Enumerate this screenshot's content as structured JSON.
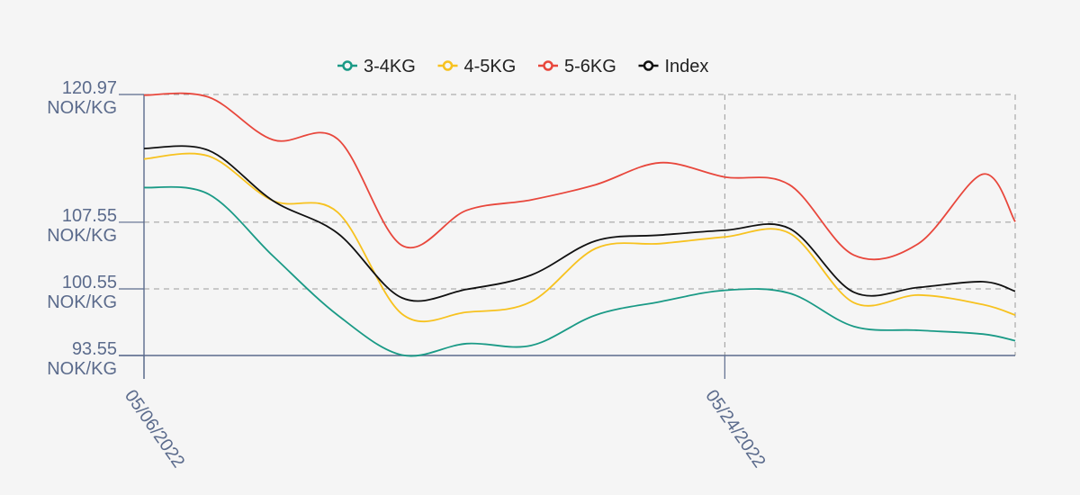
{
  "chart_data": {
    "type": "line",
    "title": "",
    "xlabel": "",
    "ylabel": "",
    "unit": "NOK/KG",
    "y_ticks": [
      93.55,
      100.55,
      107.55,
      120.97
    ],
    "y_tick_labels": [
      "93.55",
      "100.55",
      "107.55",
      "120.97"
    ],
    "ylim": [
      93.55,
      120.97
    ],
    "x_ticks": [
      "05/06/2022",
      "05/24/2022"
    ],
    "x_range": [
      "05/06/2022",
      "06/02/2022"
    ],
    "grid": true,
    "legend_position": "top-center",
    "x": [
      "05/06/2022",
      "05/08/2022",
      "05/10/2022",
      "05/12/2022",
      "05/14/2022",
      "05/16/2022",
      "05/18/2022",
      "05/20/2022",
      "05/22/2022",
      "05/24/2022",
      "05/26/2022",
      "05/28/2022",
      "05/30/2022",
      "06/01/2022",
      "06/02/2022"
    ],
    "series": [
      {
        "name": "3-4KG",
        "color": "#1a9a86",
        "values": [
          111.2,
          110.5,
          104.0,
          97.8,
          93.6,
          94.8,
          94.6,
          97.8,
          99.2,
          100.4,
          100.1,
          96.6,
          96.2,
          95.8,
          95.1
        ]
      },
      {
        "name": "4-5KG",
        "color": "#f7c21f",
        "values": [
          114.2,
          114.5,
          109.8,
          108.6,
          97.9,
          98.1,
          99.2,
          104.8,
          105.3,
          106.0,
          106.4,
          99.1,
          99.9,
          98.9,
          97.8
        ]
      },
      {
        "name": "5-6KG",
        "color": "#e8473c",
        "values": [
          120.9,
          120.7,
          116.2,
          116.3,
          105.1,
          108.8,
          109.9,
          111.5,
          113.8,
          112.3,
          111.5,
          104.1,
          105.3,
          112.6,
          107.6
        ]
      },
      {
        "name": "Index",
        "color": "#111111",
        "values": [
          115.3,
          115.1,
          109.8,
          106.4,
          99.6,
          100.5,
          102.0,
          105.6,
          106.2,
          106.7,
          106.9,
          100.2,
          100.7,
          101.3,
          100.3
        ]
      }
    ]
  }
}
